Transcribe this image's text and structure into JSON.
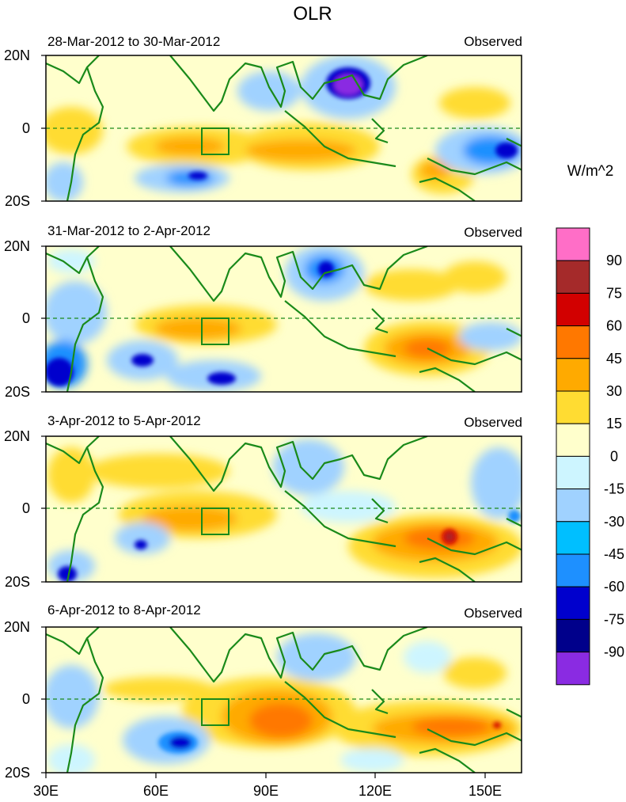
{
  "title": "OLR",
  "units": "W/m^2",
  "tag": "Observed",
  "lat_labels": [
    "20N",
    "0",
    "20S"
  ],
  "lon_labels": [
    "30E",
    "60E",
    "90E",
    "120E",
    "150E"
  ],
  "panels": [
    {
      "date_range": "28-Mar-2012 to 30-Mar-2012",
      "tag": "Observed"
    },
    {
      "date_range": "31-Mar-2012 to 2-Apr-2012",
      "tag": "Observed"
    },
    {
      "date_range": "3-Apr-2012 to 5-Apr-2012",
      "tag": "Observed"
    },
    {
      "date_range": "6-Apr-2012 to 8-Apr-2012",
      "tag": "Observed"
    }
  ],
  "colorbar": {
    "levels": [
      "90",
      "75",
      "60",
      "45",
      "30",
      "15",
      "0",
      "-15",
      "-30",
      "-45",
      "-60",
      "-75",
      "-90"
    ],
    "colors": [
      "#ff6ec7",
      "#a52a2a",
      "#d20000",
      "#ff7800",
      "#ffaa00",
      "#ffdc32",
      "#ffffcc",
      "#cdf5ff",
      "#a0d2ff",
      "#00bfff",
      "#1e90ff",
      "#0000cd",
      "#00008b",
      "#8a2be2"
    ]
  },
  "palette": {
    "land": "#1a8a1a",
    "frame": "#000000"
  }
}
